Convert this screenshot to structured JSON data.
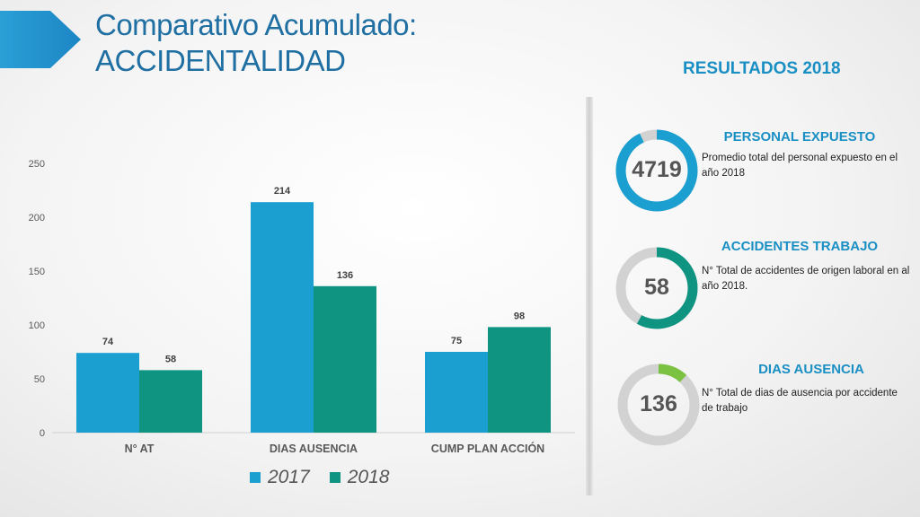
{
  "header": {
    "title_line1": "Comparativo Acumulado:",
    "title_line2": "ACCIDENTALIDAD",
    "results_heading": "RESULTADOS 2018"
  },
  "colors": {
    "series_2017": "#1a9fd0",
    "series_2018": "#0e9480",
    "ring_gray": "#d2d2d2",
    "ring_blue": "#1a9fd0",
    "ring_teal": "#0e9480",
    "ring_green": "#7cc242",
    "title_blue": "#1f6fa3"
  },
  "chart_data": {
    "type": "bar",
    "categories": [
      "N° AT",
      "DIAS AUSENCIA",
      "CUMP PLAN ACCIÓN"
    ],
    "series": [
      {
        "name": "2017",
        "values": [
          74,
          214,
          75
        ]
      },
      {
        "name": "2018",
        "values": [
          58,
          136,
          98
        ]
      }
    ],
    "title": "",
    "xlabel": "",
    "ylabel": "",
    "ylim": [
      0,
      250
    ],
    "yticks": [
      0,
      50,
      100,
      150,
      200,
      250
    ],
    "grid": false,
    "legend": "bottom"
  },
  "legend": {
    "label_2017": "2017",
    "label_2018": "2018"
  },
  "kpis": [
    {
      "title": "PERSONAL EXPUESTO",
      "value": "4719",
      "description": "Promedio total del  personal expuesto en el año 2018",
      "ring_fraction": 0.93,
      "ring_color_key": "ring_blue"
    },
    {
      "title": "ACCIDENTES TRABAJO",
      "value": "58",
      "description": "N° Total de accidentes de origen laboral en al año 2018.",
      "ring_fraction": 0.58,
      "ring_color_key": "ring_teal"
    },
    {
      "title": "DIAS AUSENCIA",
      "value": "136",
      "description": "N° Total de dias de ausencia por accidente de trabajo",
      "ring_fraction": 0.12,
      "ring_color_key": "ring_green"
    }
  ]
}
